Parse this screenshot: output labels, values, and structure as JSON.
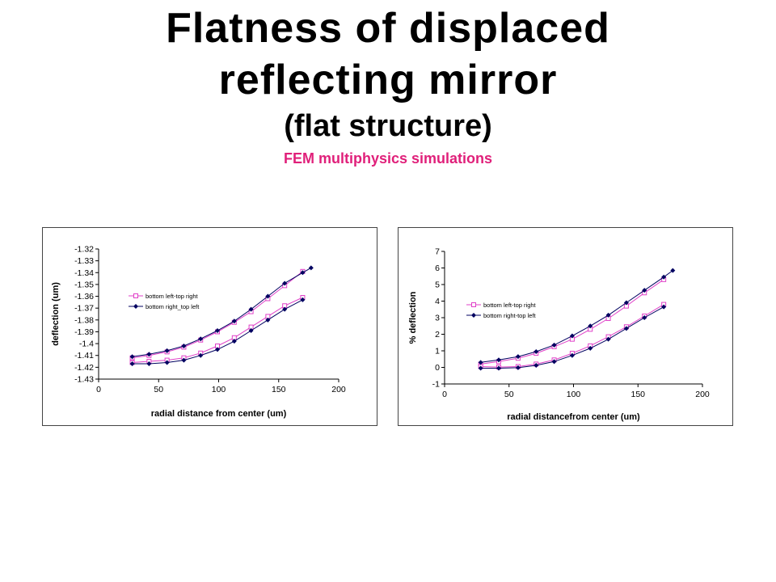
{
  "slide": {
    "title_line1": "Flatness of displaced",
    "title_line2": "reflecting mirror",
    "title_line3": "(flat structure)",
    "subtitle": "FEM multiphysics simulations"
  },
  "colors": {
    "series_pink": "#e040c8",
    "series_navy": "#000060",
    "subtitle": "#e0207a"
  },
  "chart_data": [
    {
      "type": "line",
      "title": "",
      "xlabel": "radial distance from center (um)",
      "ylabel": "deflection (um)",
      "xlim": [
        0,
        200
      ],
      "ylim": [
        -1.43,
        -1.32
      ],
      "xticks": [
        "0",
        "50",
        "100",
        "150",
        "200"
      ],
      "yticks": [
        "-1.32",
        "-1.33",
        "-1.34",
        "-1.35",
        "-1.36",
        "-1.37",
        "-1.38",
        "-1.39",
        "-1.4",
        "-1.41",
        "-1.42",
        "-1.43"
      ],
      "legend_position": "center-left",
      "series": [
        {
          "name": "bottom left-top right",
          "color": "#e040c8",
          "marker": "square",
          "x": [
            28,
            42,
            57,
            71,
            85,
            99,
            113,
            127,
            141,
            155,
            170,
            28,
            42,
            57,
            71,
            85,
            99,
            113,
            127,
            141,
            155,
            170
          ],
          "y": [
            -1.412,
            -1.41,
            -1.407,
            -1.403,
            -1.397,
            -1.39,
            -1.382,
            -1.373,
            -1.362,
            -1.351,
            -1.339,
            -1.416,
            -1.415,
            -1.414,
            -1.412,
            -1.408,
            -1.402,
            -1.395,
            -1.386,
            -1.377,
            -1.368,
            -1.361
          ],
          "segments": [
            [
              0,
              10
            ],
            [
              11,
              21
            ]
          ]
        },
        {
          "name": "bottom right_top left",
          "color": "#000060",
          "marker": "diamond",
          "x": [
            28,
            42,
            57,
            71,
            85,
            99,
            113,
            127,
            141,
            155,
            170,
            177,
            28,
            42,
            57,
            71,
            85,
            99,
            113,
            127,
            141,
            155,
            170
          ],
          "y": [
            -1.411,
            -1.409,
            -1.406,
            -1.402,
            -1.396,
            -1.389,
            -1.381,
            -1.371,
            -1.36,
            -1.349,
            -1.34,
            -1.336,
            -1.417,
            -1.417,
            -1.416,
            -1.414,
            -1.41,
            -1.405,
            -1.398,
            -1.389,
            -1.38,
            -1.371,
            -1.363
          ],
          "segments": [
            [
              0,
              11
            ],
            [
              12,
              22
            ]
          ]
        }
      ]
    },
    {
      "type": "line",
      "title": "",
      "xlabel": "radial distancefrom center (um)",
      "ylabel": "% deflection",
      "xlim": [
        0,
        200
      ],
      "ylim": [
        -1,
        7
      ],
      "xticks": [
        "0",
        "50",
        "100",
        "150",
        "200"
      ],
      "yticks": [
        "7",
        "6",
        "5",
        "4",
        "3",
        "2",
        "1",
        "0",
        "-1"
      ],
      "legend_position": "center-left",
      "series": [
        {
          "name": "bottom left-top right",
          "color": "#e040c8",
          "marker": "square",
          "x": [
            28,
            42,
            57,
            71,
            85,
            99,
            113,
            127,
            141,
            155,
            170,
            28,
            42,
            57,
            71,
            85,
            99,
            113,
            127,
            141,
            155,
            170
          ],
          "y": [
            0.2,
            0.35,
            0.55,
            0.85,
            1.25,
            1.7,
            2.3,
            2.95,
            3.7,
            4.5,
            5.3,
            0.05,
            0.02,
            0.05,
            0.2,
            0.45,
            0.85,
            1.3,
            1.85,
            2.45,
            3.1,
            3.8
          ],
          "segments": [
            [
              0,
              10
            ],
            [
              11,
              21
            ]
          ]
        },
        {
          "name": "bottom right-top left",
          "color": "#000060",
          "marker": "diamond",
          "x": [
            28,
            42,
            57,
            71,
            85,
            99,
            113,
            127,
            141,
            155,
            170,
            177,
            28,
            42,
            57,
            71,
            85,
            99,
            113,
            127,
            141,
            155,
            170
          ],
          "y": [
            0.3,
            0.45,
            0.65,
            0.95,
            1.35,
            1.9,
            2.5,
            3.15,
            3.9,
            4.65,
            5.45,
            5.85,
            -0.05,
            -0.05,
            -0.02,
            0.12,
            0.35,
            0.72,
            1.15,
            1.7,
            2.35,
            3.0,
            3.65
          ],
          "segments": [
            [
              0,
              11
            ],
            [
              12,
              22
            ]
          ]
        }
      ]
    }
  ]
}
